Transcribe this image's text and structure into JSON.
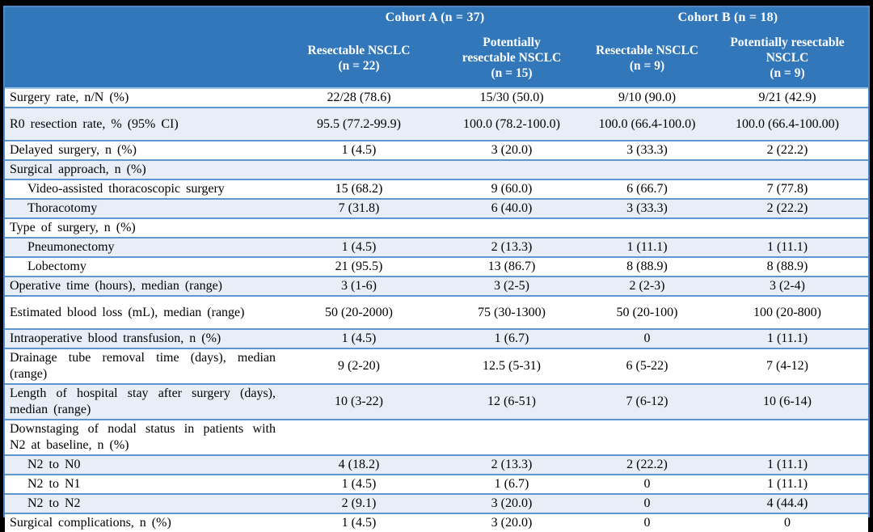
{
  "colors": {
    "frame": "#000000",
    "header_bg": "#3277BA",
    "header_text": "#FFFFFF",
    "row_bg": "#FFFFFF",
    "row_alt_bg": "#E7EEF8",
    "border": "#5E97D0",
    "body_text": "#000000"
  },
  "table": {
    "header": {
      "groups": [
        {
          "label": "Cohort A (n = 37)"
        },
        {
          "label": "Cohort B (n = 18)"
        }
      ],
      "columns": [
        {
          "lines": [
            "Resectable NSCLC",
            "(n = 22)"
          ]
        },
        {
          "lines": [
            "Potentially",
            "resectable NSCLC",
            "(n = 15)"
          ]
        },
        {
          "lines": [
            "Resectable NSCLC",
            "(n = 9)"
          ]
        },
        {
          "lines": [
            "Potentially resectable",
            "NSCLC",
            "(n = 9)"
          ]
        }
      ]
    },
    "rows": [
      {
        "label": "Surgery rate, n/N (%)",
        "values": [
          "22/28 (78.6)",
          "15/30 (50.0)",
          "9/10 (90.0)",
          "9/21 (42.9)"
        ],
        "indent": false,
        "shade": false,
        "tall": false
      },
      {
        "label": "R0 resection rate, % (95% CI)",
        "values": [
          "95.5 (77.2-99.9)",
          "100.0 (78.2-100.0)",
          "100.0 (66.4-100.0)",
          "100.0 (66.4-100.00)"
        ],
        "indent": false,
        "shade": true,
        "tall": true
      },
      {
        "label": "Delayed surgery, n (%)",
        "values": [
          "1 (4.5)",
          "3 (20.0)",
          "3 (33.3)",
          "2 (22.2)"
        ],
        "indent": false,
        "shade": false,
        "tall": false
      },
      {
        "label": "Surgical approach, n (%)",
        "values": [],
        "indent": false,
        "shade": true,
        "tall": false
      },
      {
        "label": "Video-assisted thoracoscopic surgery",
        "values": [
          "15 (68.2)",
          "9 (60.0)",
          "6 (66.7)",
          "7 (77.8)"
        ],
        "indent": true,
        "shade": false,
        "tall": false
      },
      {
        "label": "Thoracotomy",
        "values": [
          "7 (31.8)",
          "6 (40.0)",
          "3 (33.3)",
          "2 (22.2)"
        ],
        "indent": true,
        "shade": true,
        "tall": false
      },
      {
        "label": "Type of surgery, n (%)",
        "values": [],
        "indent": false,
        "shade": false,
        "tall": false
      },
      {
        "label": "Pneumonectomy",
        "values": [
          "1 (4.5)",
          "2 (13.3)",
          "1 (11.1)",
          "1 (11.1)"
        ],
        "indent": true,
        "shade": true,
        "tall": false
      },
      {
        "label": "Lobectomy",
        "values": [
          "21 (95.5)",
          "13 (86.7)",
          "8 (88.9)",
          "8 (88.9)"
        ],
        "indent": true,
        "shade": false,
        "tall": false
      },
      {
        "label": "Operative time (hours), median (range)",
        "values": [
          "3 (1-6)",
          "3 (2-5)",
          "2 (2-3)",
          "3 (2-4)"
        ],
        "indent": false,
        "shade": true,
        "tall": false
      },
      {
        "label": "Estimated blood loss (mL), median (range)",
        "values": [
          "50 (20-2000)",
          "75 (30-1300)",
          "50 (20-100)",
          "100 (20-800)"
        ],
        "indent": false,
        "shade": false,
        "tall": true
      },
      {
        "label": "Intraoperative blood transfusion, n (%)",
        "values": [
          "1 (4.5)",
          "1 (6.7)",
          "0",
          "1 (11.1)"
        ],
        "indent": false,
        "shade": true,
        "tall": false
      },
      {
        "label": "Drainage tube removal time (days), median (range)",
        "values": [
          "9 (2-20)",
          "12.5 (5-31)",
          "6 (5-22)",
          "7 (4-12)"
        ],
        "indent": false,
        "shade": false,
        "tall": true
      },
      {
        "label": "Length of hospital stay after surgery (days), median (range)",
        "values": [
          "10 (3-22)",
          "12 (6-51)",
          "7 (6-12)",
          "10 (6-14)"
        ],
        "indent": false,
        "shade": true,
        "tall": true
      },
      {
        "label": "Downstaging of nodal status in patients with N2 at baseline, n (%)",
        "values": [],
        "indent": false,
        "shade": false,
        "tall": true
      },
      {
        "label": "N2 to N0",
        "values": [
          "4 (18.2)",
          "2 (13.3)",
          "2 (22.2)",
          "1 (11.1)"
        ],
        "indent": true,
        "shade": true,
        "tall": false
      },
      {
        "label": "N2 to N1",
        "values": [
          "1 (4.5)",
          "1 (6.7)",
          "0",
          "1 (11.1)"
        ],
        "indent": true,
        "shade": false,
        "tall": false
      },
      {
        "label": "N2 to N2",
        "values": [
          "2 (9.1)",
          "3 (20.0)",
          "0",
          "4 (44.4)"
        ],
        "indent": true,
        "shade": true,
        "tall": false
      },
      {
        "label": "Surgical complications, n (%)",
        "values": [
          "1 (4.5)",
          "3 (20.0)",
          "0",
          "0"
        ],
        "indent": false,
        "shade": false,
        "tall": false
      }
    ]
  }
}
